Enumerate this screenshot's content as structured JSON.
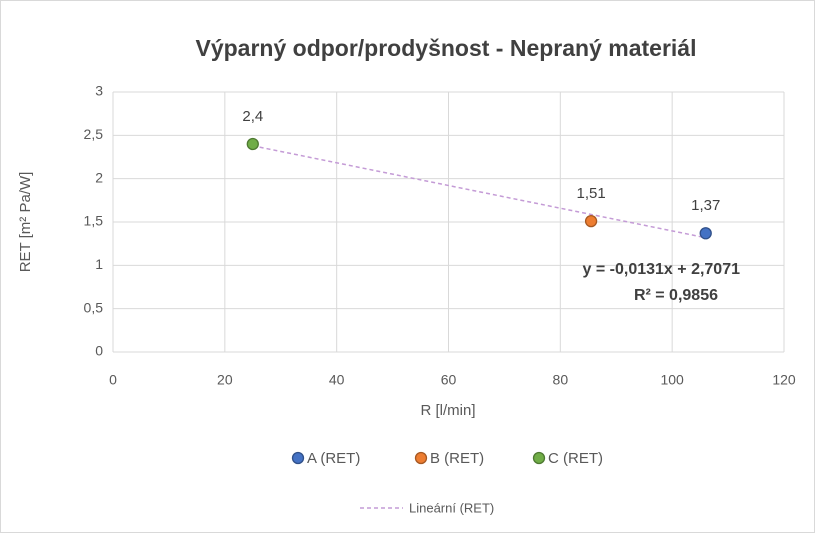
{
  "chart_data": {
    "type": "scatter",
    "title": "Výparný odpor/prodyšnost - Nepraný materiál",
    "x_label": "R [l/min]",
    "y_label": "RET [m² Pa/W]",
    "xlim": [
      0,
      120
    ],
    "xticks": [
      0,
      20,
      40,
      60,
      80,
      100,
      120
    ],
    "ylim": [
      0,
      3
    ],
    "yticks": [
      0,
      {
        "value": 0.5,
        "label": "0,5"
      },
      1,
      {
        "value": 1.5,
        "label": "1,5"
      },
      2,
      {
        "value": 2.5,
        "label": "2,5"
      },
      3
    ],
    "grid": true,
    "legend": "bottom",
    "series": [
      {
        "name": "A (RET)",
        "color": "#4472c4",
        "x": [
          106
        ],
        "values": [
          1.37
        ],
        "value_labels": [
          "1,37"
        ]
      },
      {
        "name": "B (RET)",
        "color": "#ed7d31",
        "x": [
          85.5
        ],
        "values": [
          1.51
        ],
        "value_labels": [
          "1,51"
        ]
      },
      {
        "name": "C (RET)",
        "color": "#70ad47",
        "x": [
          25
        ],
        "values": [
          2.4
        ],
        "value_labels": [
          "2,4"
        ]
      }
    ],
    "trendline": {
      "name": "Lineární (RET)",
      "color": "#c49bd6",
      "slope": -0.0131,
      "intercept": 2.7071,
      "equation": "y = -0,0131x + 2,7071",
      "r2_label": "R² = 0,9856"
    }
  }
}
